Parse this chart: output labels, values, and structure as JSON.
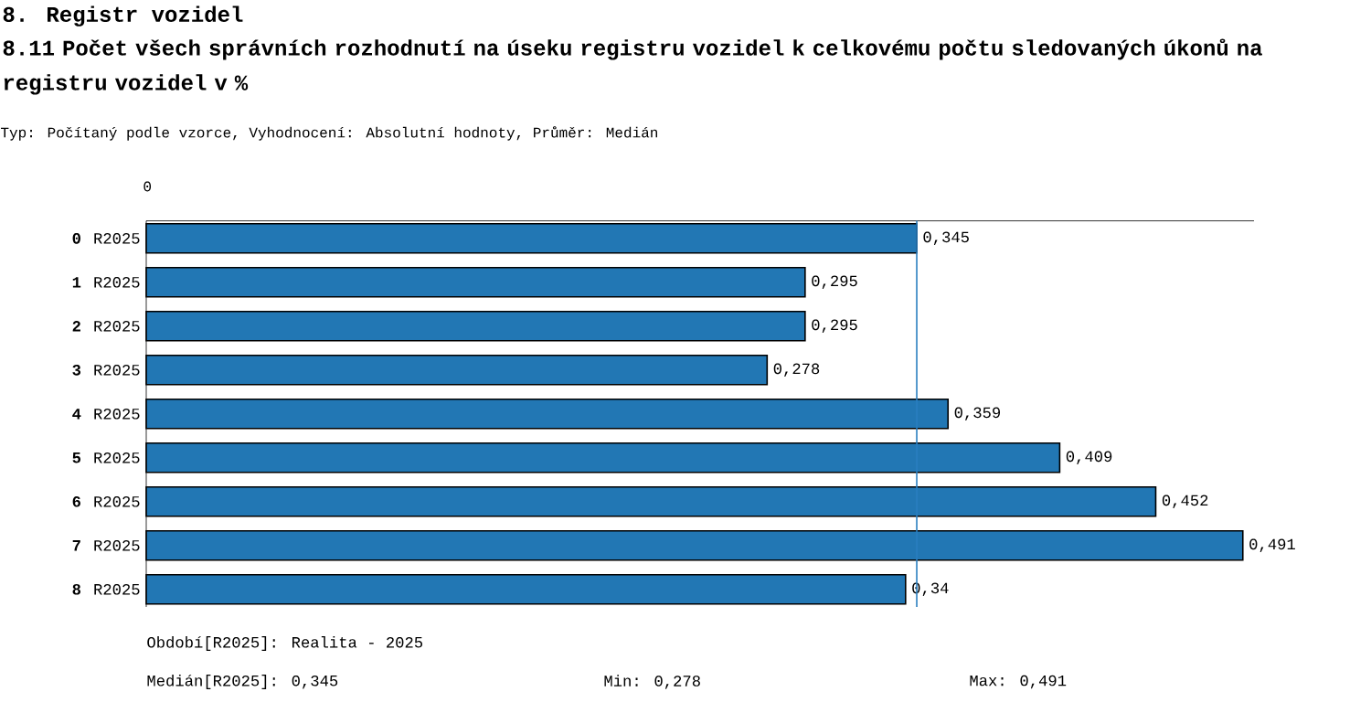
{
  "chart_data": {
    "type": "bar",
    "orientation": "horizontal",
    "title": "8. Registr vozidel",
    "subtitle": "8.11 Počet všech správních rozhodnutí na úseku registru vozidel k celkovému počtu sledovaných úkonů na registru vozidel v %",
    "annotations": [
      "0",
      "Typ: Počítaný podle vzorce, Vyhodnocení: Absolutní hodnoty, Průměr: Medián",
      "Období[R2025]: Realita - 2025",
      "Medián[R2025]: 0,345",
      "Min: 0,278",
      "Max: 0,491"
    ],
    "categories": [
      "0",
      "1",
      "2",
      "3",
      "4",
      "5",
      "6",
      "7",
      "8"
    ],
    "series": [
      {
        "name": "R2025",
        "color": "#2277b4",
        "values": [
          0.345,
          0.295,
          0.295,
          0.278,
          0.359,
          0.409,
          0.452,
          0.491,
          0.34
        ],
        "value_labels": [
          "0,345",
          "0,295",
          "0,295",
          "0,278",
          "0,359",
          "0,409",
          "0,452",
          "0,491",
          "0,34"
        ]
      }
    ],
    "xlim": [
      0,
      0.496
    ],
    "ref_lines": [
      {
        "axis": "x",
        "value": 0.345,
        "color": "#2a7fc0"
      }
    ]
  }
}
